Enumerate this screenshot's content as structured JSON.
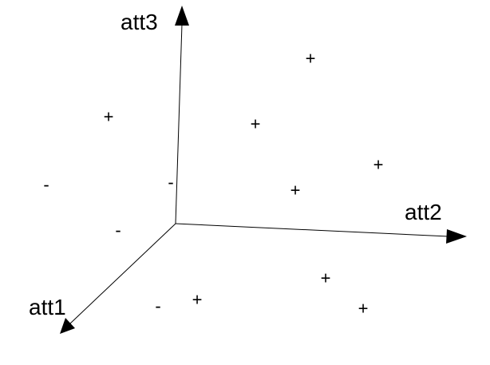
{
  "axes": {
    "att1": "att1",
    "att2": "att2",
    "att3": "att3"
  },
  "points": [
    {
      "symbol": "+",
      "class": "positive"
    },
    {
      "symbol": "+",
      "class": "positive"
    },
    {
      "symbol": "+",
      "class": "positive"
    },
    {
      "symbol": "+",
      "class": "positive"
    },
    {
      "symbol": "+",
      "class": "positive"
    },
    {
      "symbol": "+",
      "class": "positive"
    },
    {
      "symbol": "+",
      "class": "positive"
    },
    {
      "symbol": "+",
      "class": "positive"
    },
    {
      "symbol": "-",
      "class": "negative"
    },
    {
      "symbol": "-",
      "class": "negative"
    },
    {
      "symbol": "-",
      "class": "negative"
    },
    {
      "symbol": "-",
      "class": "negative"
    }
  ],
  "colors": {
    "ink": "#000000",
    "background": "#ffffff"
  }
}
